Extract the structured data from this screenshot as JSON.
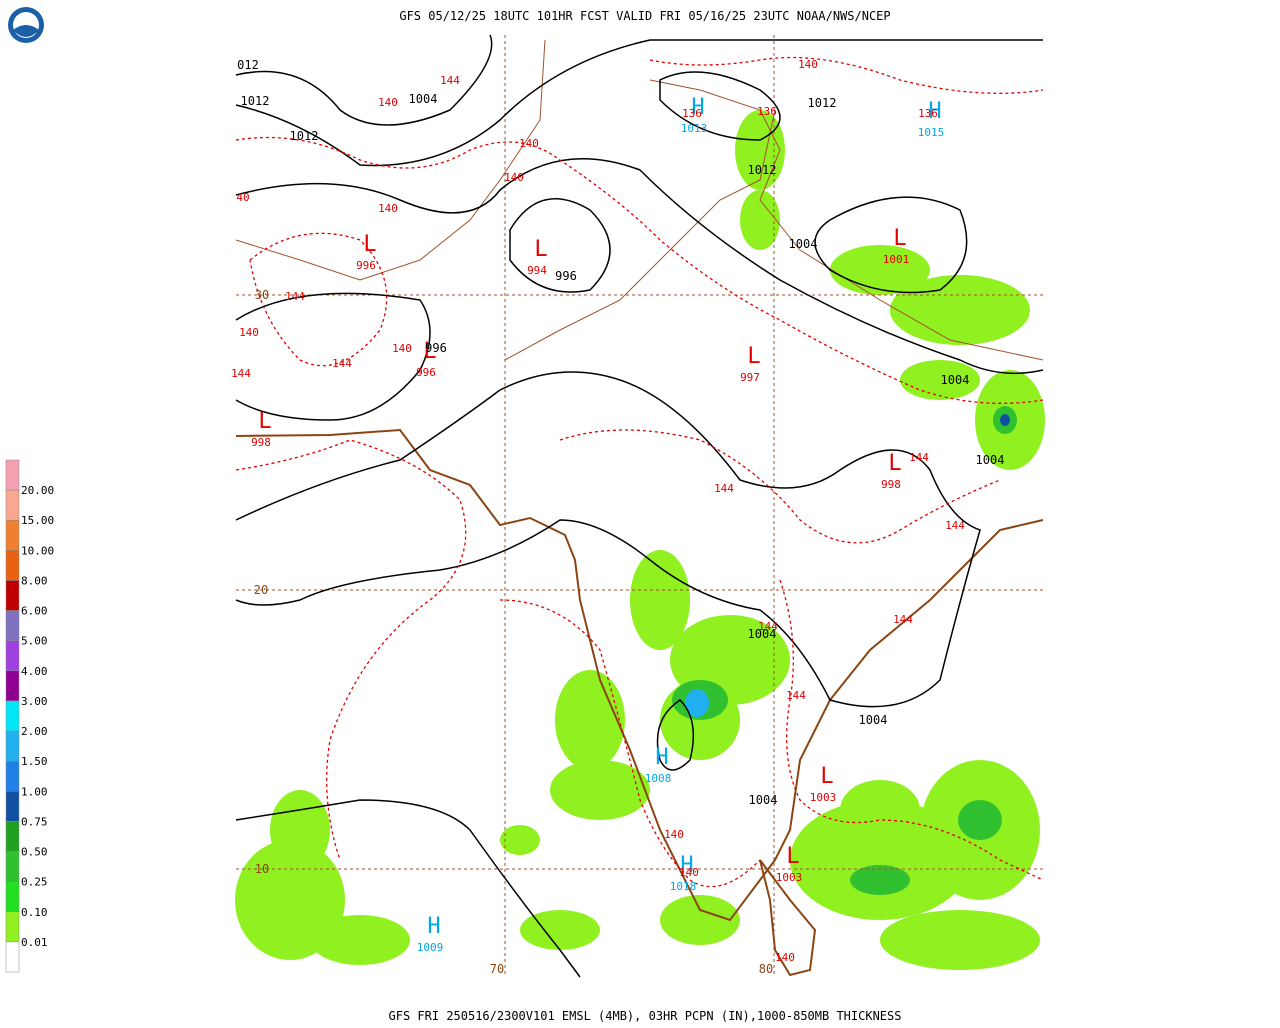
{
  "header": {
    "title": "GFS 05/12/25 18UTC 101HR FCST VALID FRI 05/16/25 23UTC NOAA/NWS/NCEP"
  },
  "footer": {
    "caption": "GFS FRI 250516/2300V101 EMSL (4MB), 03HR PCPN (IN),1000-850MB THICKNESS"
  },
  "legend": {
    "labels": [
      "20.00",
      "15.00",
      "10.00",
      "8.00",
      "6.00",
      "5.00",
      "4.00",
      "3.00",
      "2.00",
      "1.50",
      "1.00",
      "0.75",
      "0.50",
      "0.25",
      "0.10",
      "0.01"
    ]
  },
  "map": {
    "pressure_centers": [
      {
        "letter": "L",
        "value": "996"
      },
      {
        "letter": "L",
        "value": "994"
      },
      {
        "letter": "L",
        "value": "996"
      },
      {
        "letter": "L",
        "value": "997"
      },
      {
        "letter": "L",
        "value": "998"
      },
      {
        "letter": "L",
        "value": "998"
      },
      {
        "letter": "L",
        "value": "1001"
      },
      {
        "letter": "L",
        "value": "1003"
      },
      {
        "letter": "L",
        "value": "1003"
      },
      {
        "letter": "H",
        "value": "1013"
      },
      {
        "letter": "H",
        "value": "1015"
      },
      {
        "letter": "H",
        "value": "1008"
      },
      {
        "letter": "H",
        "value": "1018"
      },
      {
        "letter": "H",
        "value": "1009"
      }
    ],
    "isobar_labels": [
      "012",
      "1012",
      "1004",
      "1012",
      "1012",
      "1012",
      "1004",
      "996",
      "996",
      "1004",
      "1004",
      "1004",
      "1004",
      "1004"
    ],
    "thickness_labels": [
      "144",
      "140",
      "140",
      "140",
      "140",
      "40",
      "144",
      "140",
      "144",
      "140",
      "144",
      "140",
      "136",
      "136",
      "136",
      "144",
      "144",
      "144",
      "144",
      "144",
      "144",
      "140",
      "140",
      "140"
    ],
    "lat_labels": [
      "30",
      "20",
      "10"
    ],
    "lon_labels": [
      "70",
      "80"
    ]
  }
}
